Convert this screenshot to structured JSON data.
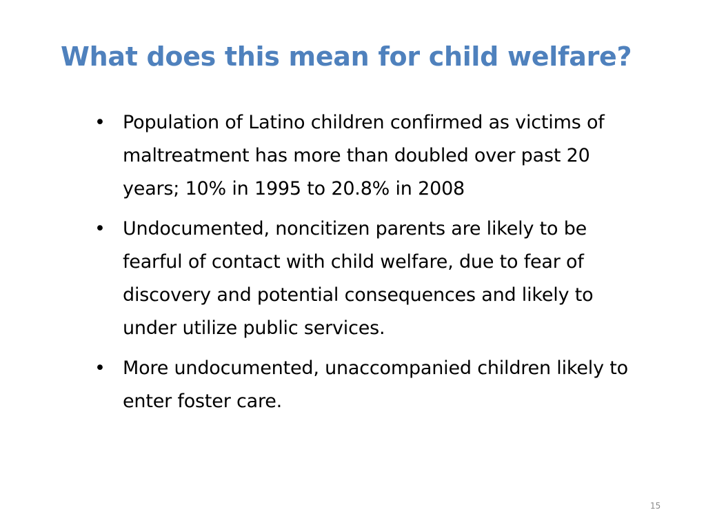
{
  "slide": {
    "title": "What does this mean for child welfare?",
    "bullet_glyph": "•",
    "bullets": [
      {
        "text": "Population of Latino children confirmed as victims of maltreatment has more than doubled over past 20 years; 10% in 1995 to 20.8% in 2008"
      },
      {
        "text": "Undocumented, noncitizen parents are likely to be fearful of contact with child welfare, due to fear of discovery and potential consequences and likely to under utilize public services."
      },
      {
        "text": "More undocumented, unaccompanied children likely to enter foster care."
      }
    ],
    "page_number": "15"
  },
  "colors": {
    "title": "#4f81bd",
    "body_text": "#000000",
    "page_number": "#898989",
    "background": "#ffffff"
  }
}
